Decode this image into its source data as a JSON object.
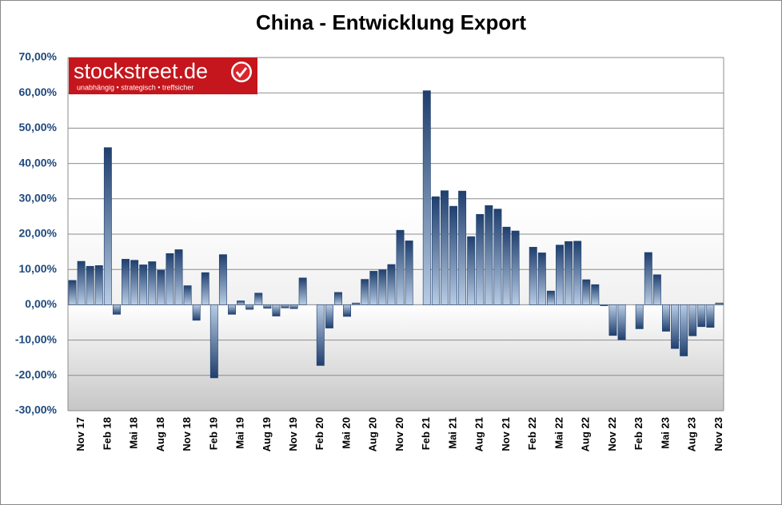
{
  "chart_data": {
    "type": "bar",
    "title": "China - Entwicklung Export",
    "categories": [
      null,
      "Nov 17",
      null,
      null,
      "Feb 18",
      null,
      null,
      "Mai 18",
      null,
      null,
      "Aug 18",
      null,
      null,
      "Nov 18",
      null,
      null,
      "Feb 19",
      null,
      null,
      "Mai 19",
      null,
      null,
      "Aug 19",
      null,
      null,
      "Nov 19",
      null,
      null,
      "Feb 20",
      null,
      null,
      "Mai 20",
      null,
      null,
      "Aug 20",
      null,
      null,
      "Nov 20",
      null,
      null,
      "Feb 21",
      null,
      null,
      "Mai 21",
      null,
      null,
      "Aug 21",
      null,
      null,
      "Nov 21",
      null,
      null,
      "Feb 22",
      null,
      null,
      "Mai 22",
      null,
      null,
      "Aug 22",
      null,
      null,
      "Nov 22",
      null,
      null,
      "Feb 23",
      null,
      null,
      "Mai 23",
      null,
      null,
      "Aug 23",
      null,
      null,
      "Nov 23"
    ],
    "values": [
      6.9,
      12.3,
      10.9,
      11.1,
      44.5,
      -2.7,
      12.9,
      12.6,
      11.3,
      12.2,
      9.8,
      14.5,
      15.6,
      5.4,
      -4.4,
      9.1,
      -20.7,
      14.2,
      -2.7,
      1.1,
      -1.3,
      3.3,
      -1.0,
      -3.2,
      -0.9,
      -1.1,
      7.6,
      null,
      -17.2,
      -6.6,
      3.5,
      -3.3,
      0.5,
      7.2,
      9.5,
      9.9,
      11.4,
      21.1,
      18.1,
      null,
      60.6,
      30.6,
      32.3,
      27.9,
      32.2,
      19.3,
      25.6,
      28.1,
      27.1,
      22.0,
      20.9,
      null,
      16.3,
      14.7,
      3.9,
      16.9,
      17.9,
      18.0,
      7.1,
      5.7,
      -0.3,
      -8.7,
      -9.9,
      null,
      -6.8,
      14.8,
      8.5,
      -7.5,
      -12.4,
      -14.5,
      -8.8,
      -6.2,
      -6.4,
      0.5
    ],
    "color": "#1f3f6e",
    "ylim": [
      -30,
      70
    ],
    "yticks": [
      {
        "value": -30,
        "label": "-30,00%"
      },
      {
        "value": -20,
        "label": "-20,00%"
      },
      {
        "value": -10,
        "label": "-10,00%"
      },
      {
        "value": 0,
        "label": "0,00%"
      },
      {
        "value": 10,
        "label": "10,00%"
      },
      {
        "value": 20,
        "label": "20,00%"
      },
      {
        "value": 30,
        "label": "30,00%"
      },
      {
        "value": 40,
        "label": "40,00%"
      },
      {
        "value": 50,
        "label": "50,00%"
      },
      {
        "value": 60,
        "label": "60,00%"
      },
      {
        "value": 70,
        "label": "70,00%"
      }
    ],
    "grid": true
  },
  "logo": {
    "name": "stockstreet.de",
    "tagline": "unabhängig • strategisch • treffsicher"
  }
}
